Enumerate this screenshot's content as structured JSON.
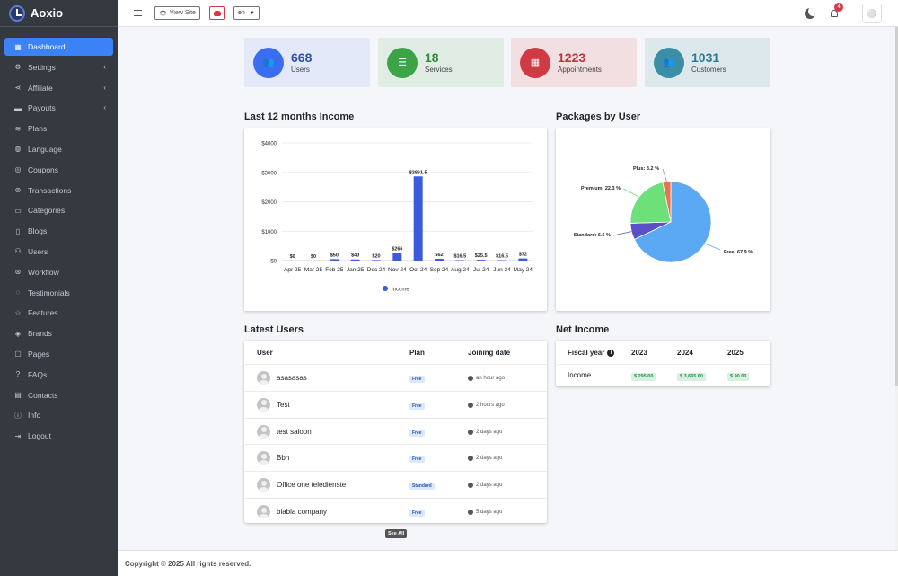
{
  "app": {
    "name": "Aoxio"
  },
  "sidebar": {
    "items": [
      {
        "label": "Dashboard",
        "icon": "dashboard-icon",
        "active": true
      },
      {
        "label": "Settings",
        "icon": "gear-icon",
        "chevron": true
      },
      {
        "label": "Affiliate",
        "icon": "share-icon",
        "chevron": true
      },
      {
        "label": "Payouts",
        "icon": "credit-card-icon",
        "chevron": true
      },
      {
        "label": "Plans",
        "icon": "layers-icon"
      },
      {
        "label": "Language",
        "icon": "globe-icon"
      },
      {
        "label": "Coupons",
        "icon": "coupon-icon"
      },
      {
        "label": "Transactions",
        "icon": "transactions-icon"
      },
      {
        "label": "Categories",
        "icon": "folder-icon"
      },
      {
        "label": "Blogs",
        "icon": "file-icon"
      },
      {
        "label": "Users",
        "icon": "users-icon"
      },
      {
        "label": "Workflow",
        "icon": "workflow-icon"
      },
      {
        "label": "Testimonials",
        "icon": "comment-icon"
      },
      {
        "label": "Features",
        "icon": "star-icon"
      },
      {
        "label": "Brands",
        "icon": "brand-icon"
      },
      {
        "label": "Pages",
        "icon": "pages-icon"
      },
      {
        "label": "FAQs",
        "icon": "question-icon"
      },
      {
        "label": "Contacts",
        "icon": "contact-icon"
      },
      {
        "label": "Info",
        "icon": "info-icon"
      },
      {
        "label": "Logout",
        "icon": "logout-icon"
      }
    ]
  },
  "topbar": {
    "view_site": "View Site",
    "language": "en",
    "notifications_count": "4"
  },
  "stats": [
    {
      "value": "668",
      "label": "Users",
      "bg": "#e3e9f8",
      "icon_bg": "#3b6df0",
      "color": "#2e4fa8",
      "icon": "users-icon"
    },
    {
      "value": "18",
      "label": "Services",
      "bg": "#e1ece4",
      "icon_bg": "#3aa447",
      "color": "#2e8b3d",
      "icon": "list-icon"
    },
    {
      "value": "1223",
      "label": "Appointments",
      "bg": "#f1dfe1",
      "icon_bg": "#d03a45",
      "color": "#c0343f",
      "icon": "calendar-icon"
    },
    {
      "value": "1031",
      "label": "Customers",
      "bg": "#dde8ec",
      "icon_bg": "#3b8ea8",
      "color": "#2d7a94",
      "icon": "customers-icon"
    }
  ],
  "sections": {
    "income_title": "Last 12 months Income",
    "packages_title": "Packages by User",
    "latest_users_title": "Latest Users",
    "net_income_title": "Net Income"
  },
  "chart_data": [
    {
      "type": "bar",
      "categories": [
        "Apr 25",
        "Mar 25",
        "Feb 25",
        "Jan 25",
        "Dec 24",
        "Nov 24",
        "Oct 24",
        "Sep 24",
        "Aug 24",
        "Jul 24",
        "Jun 24",
        "May 24"
      ],
      "series": [
        {
          "name": "Income",
          "values": [
            0,
            0,
            50,
            40,
            20,
            266,
            2861.5,
            62,
            16.5,
            25.5,
            16.5,
            72
          ],
          "color": "#3b5bdb"
        }
      ],
      "data_labels": [
        "$0",
        "$0",
        "$50",
        "$40",
        "$20",
        "$266",
        "$2861.5",
        "$62",
        "$16.5",
        "$25.5",
        "$16.5",
        "$72"
      ],
      "y_ticks": [
        "$0",
        "$1000",
        "$2000",
        "$3000",
        "$4000"
      ],
      "ylim": [
        0,
        4000
      ],
      "grid": true,
      "legend": "bottom"
    },
    {
      "type": "pie",
      "slices": [
        {
          "label": "Free: 67.9 %",
          "value": 67.9,
          "color": "#5ba8f5"
        },
        {
          "label": "Standard: 6.6 %",
          "value": 6.6,
          "color": "#5b4fc9"
        },
        {
          "label": "Premium: 22.3 %",
          "value": 22.3,
          "color": "#6ee07a"
        },
        {
          "label": "Plus: 3.2 %",
          "value": 3.2,
          "color": "#e8734a"
        }
      ]
    }
  ],
  "latest_users": {
    "headers": {
      "user": "User",
      "plan": "Plan",
      "joining": "Joining date"
    },
    "rows": [
      {
        "name": "asasasas",
        "plan": "Free",
        "date": "an hour ago"
      },
      {
        "name": "Test",
        "plan": "Free",
        "date": "2 hours ago"
      },
      {
        "name": "test saloon",
        "plan": "Free",
        "date": "2 days ago"
      },
      {
        "name": "Bbh",
        "plan": "Free",
        "date": "2 days ago"
      },
      {
        "name": "Office one teledienste",
        "plan": "Standard",
        "date": "2 days ago"
      },
      {
        "name": "blabla company",
        "plan": "Free",
        "date": "5 days ago"
      }
    ],
    "see_all": "See All"
  },
  "net_income": {
    "header": "Fiscal year",
    "years": [
      "2023",
      "2024",
      "2025"
    ],
    "row_label": "Income",
    "values": [
      "$ 295.00",
      "$ 3,665.60",
      "$ 90.00"
    ]
  },
  "footer": {
    "text": "Copyright © 2025 All rights reserved."
  }
}
